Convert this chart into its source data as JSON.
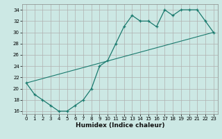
{
  "xlabel": "Humidex (Indice chaleur)",
  "bg_color": "#cce8e4",
  "grid_color": "#b0b0b0",
  "line_color": "#1a7a6e",
  "line1_x": [
    0,
    1,
    2,
    3,
    4,
    5,
    6,
    7,
    8,
    9,
    10,
    11,
    12,
    13,
    14,
    15,
    16,
    17,
    18,
    19,
    20,
    21,
    22,
    23
  ],
  "line1_y": [
    21,
    19,
    18,
    17,
    16,
    16,
    17,
    18,
    20,
    24,
    25,
    28,
    31,
    33,
    32,
    32,
    31,
    34,
    33,
    34,
    34,
    34,
    32,
    30
  ],
  "ref_line_x": [
    0,
    23
  ],
  "ref_line_y": [
    21,
    30
  ],
  "ylim": [
    15.5,
    35
  ],
  "xlim": [
    -0.5,
    23.5
  ],
  "yticks": [
    16,
    18,
    20,
    22,
    24,
    26,
    28,
    30,
    32,
    34
  ],
  "xticks": [
    0,
    1,
    2,
    3,
    4,
    5,
    6,
    7,
    8,
    9,
    10,
    11,
    12,
    13,
    14,
    15,
    16,
    17,
    18,
    19,
    20,
    21,
    22,
    23
  ],
  "xlabel_fontsize": 6.5,
  "tick_fontsize": 5.0
}
